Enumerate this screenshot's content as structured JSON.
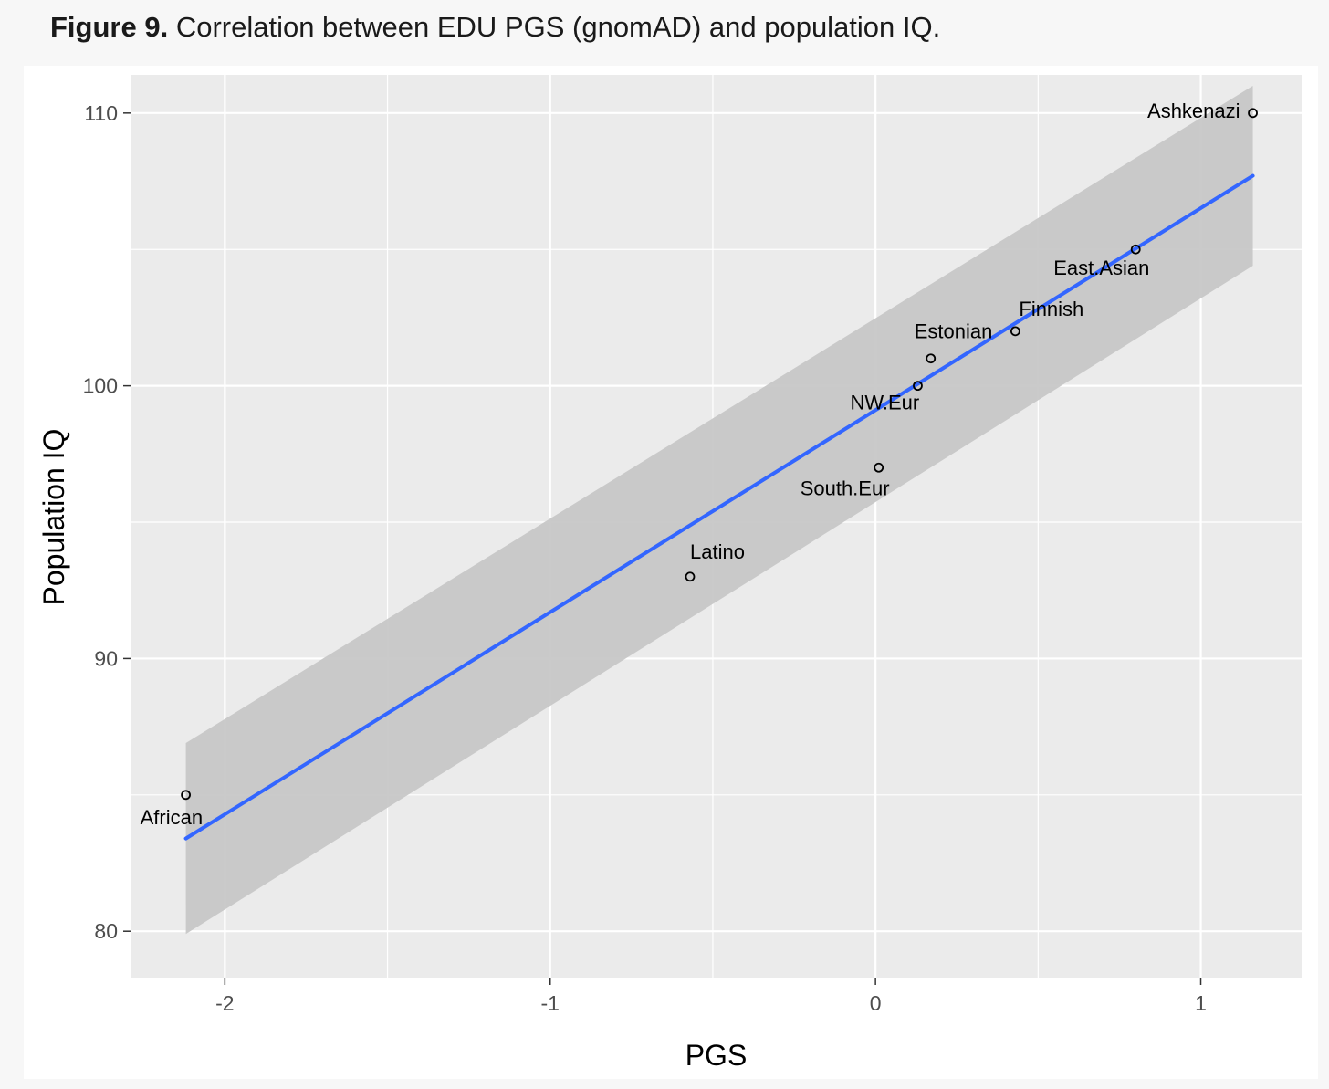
{
  "caption": {
    "bold": "Figure 9.",
    "text": " Correlation between EDU PGS (gnomAD) and population IQ."
  },
  "chart_data": {
    "type": "scatter",
    "title": "",
    "xlabel": "PGS",
    "ylabel": "Population IQ",
    "xlim": [
      -2.29,
      1.31
    ],
    "ylim": [
      78.3,
      111.4
    ],
    "xticks": [
      -2,
      -1,
      0,
      1
    ],
    "xtick_labels": [
      "-2",
      "-1",
      "0",
      "1"
    ],
    "yticks": [
      80,
      90,
      100,
      110
    ],
    "ytick_labels": [
      "80",
      "90",
      "100",
      "110"
    ],
    "points": [
      {
        "label": "Ashkenazi",
        "x": 1.16,
        "y": 110
      },
      {
        "label": "East.Asian",
        "x": 0.8,
        "y": 105
      },
      {
        "label": "Finnish",
        "x": 0.43,
        "y": 102
      },
      {
        "label": "Estonian",
        "x": 0.17,
        "y": 101
      },
      {
        "label": "NW.Eur",
        "x": 0.13,
        "y": 100
      },
      {
        "label": "South.Eur",
        "x": 0.01,
        "y": 97
      },
      {
        "label": "Latino",
        "x": -0.57,
        "y": 93
      },
      {
        "label": "African",
        "x": -2.12,
        "y": 85
      }
    ],
    "regression_line": {
      "x": [
        -2.12,
        1.16
      ],
      "y": [
        83.4,
        107.7
      ],
      "ci_lower": [
        79.9,
        104.4
      ],
      "ci_upper": [
        86.9,
        111.0
      ],
      "color": "#3366ff"
    },
    "colors": {
      "panel": "#ebebeb",
      "grid": "#ffffff",
      "band": "#c7c7c7",
      "line": "#3366ff"
    }
  }
}
